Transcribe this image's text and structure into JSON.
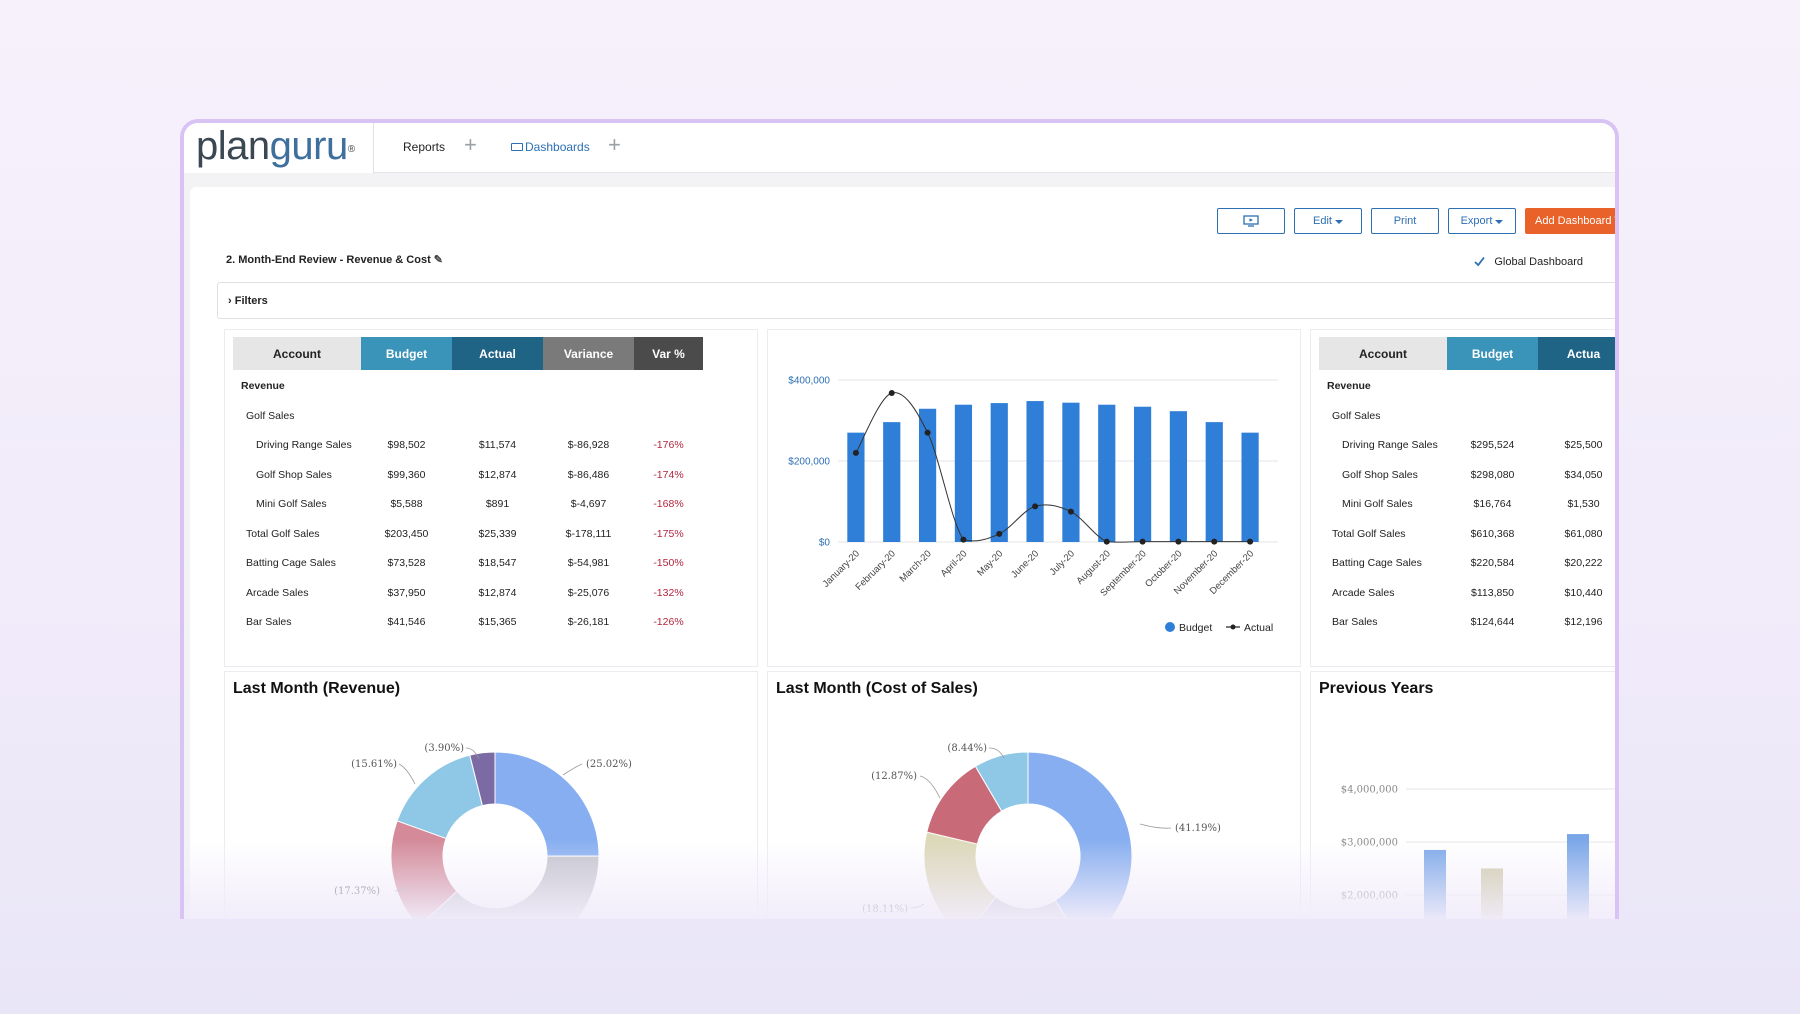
{
  "nav": {
    "logo_plan": "plan",
    "logo_guru": "guru",
    "logo_reg": "®",
    "reports": "Reports",
    "dashboards": "Dashboards",
    "plus": "+"
  },
  "toolbar": {
    "edit": "Edit",
    "print": "Print",
    "export": "Export",
    "add_dashboard": "Add Dashboard T"
  },
  "dashboard": {
    "title": "2. Month-End Review - Revenue & Cost",
    "global_label": "Global Dashboard",
    "filters": "Filters"
  },
  "table_left": {
    "headers": [
      "Account",
      "Budget",
      "Actual",
      "Variance",
      "Var %"
    ],
    "rows": [
      {
        "account": "Revenue",
        "budget": "",
        "actual": "",
        "variance": "",
        "var_pct": ""
      },
      {
        "account": "Golf Sales",
        "budget": "",
        "actual": "",
        "variance": "",
        "var_pct": ""
      },
      {
        "account": "Driving Range Sales",
        "budget": "$98,502",
        "actual": "$11,574",
        "variance": "$-86,928",
        "var_pct": "-176%"
      },
      {
        "account": "Golf Shop Sales",
        "budget": "$99,360",
        "actual": "$12,874",
        "variance": "$-86,486",
        "var_pct": "-174%"
      },
      {
        "account": "Mini Golf Sales",
        "budget": "$5,588",
        "actual": "$891",
        "variance": "$-4,697",
        "var_pct": "-168%"
      },
      {
        "account": "Total Golf Sales",
        "budget": "$203,450",
        "actual": "$25,339",
        "variance": "$-178,111",
        "var_pct": "-175%"
      },
      {
        "account": "Batting Cage Sales",
        "budget": "$73,528",
        "actual": "$18,547",
        "variance": "$-54,981",
        "var_pct": "-150%"
      },
      {
        "account": "Arcade Sales",
        "budget": "$37,950",
        "actual": "$12,874",
        "variance": "$-25,076",
        "var_pct": "-132%"
      },
      {
        "account": "Bar Sales",
        "budget": "$41,546",
        "actual": "$15,365",
        "variance": "$-26,181",
        "var_pct": "-126%"
      }
    ]
  },
  "table_right": {
    "headers": [
      "Account",
      "Budget",
      "Actua"
    ],
    "rows": [
      {
        "account": "Revenue",
        "budget": "",
        "actual": ""
      },
      {
        "account": "Golf Sales",
        "budget": "",
        "actual": ""
      },
      {
        "account": "Driving Range Sales",
        "budget": "$295,524",
        "actual": "$25,500"
      },
      {
        "account": "Golf Shop Sales",
        "budget": "$298,080",
        "actual": "$34,050"
      },
      {
        "account": "Mini Golf Sales",
        "budget": "$16,764",
        "actual": "$1,530"
      },
      {
        "account": "Total Golf Sales",
        "budget": "$610,368",
        "actual": "$61,080"
      },
      {
        "account": "Batting Cage Sales",
        "budget": "$220,584",
        "actual": "$20,222"
      },
      {
        "account": "Arcade Sales",
        "budget": "$113,850",
        "actual": "$10,440"
      },
      {
        "account": "Bar Sales",
        "budget": "$124,644",
        "actual": "$12,196"
      }
    ]
  },
  "panels": {
    "revenue_title": "Last Month (Revenue)",
    "cost_title": "Last Month (Cost of Sales)",
    "prev_years_title": "Previous Years"
  },
  "colors": {
    "budget": "#2f7fd8",
    "actual": "#222222",
    "header_gray": "#e6e6e6",
    "header_budget": "#3a93b8",
    "header_actual": "#1f6385",
    "header_variance": "#7a7a7a",
    "header_varpct": "#4b4b4b",
    "accent_orange": "#e8622a"
  },
  "chart_data": [
    {
      "type": "bar",
      "categories": [
        "January-20",
        "February-20",
        "March-20",
        "April-20",
        "May-20",
        "June-20",
        "July-20",
        "August-20",
        "September-20",
        "October-20",
        "November-20",
        "December-20"
      ],
      "series": [
        {
          "name": "Budget",
          "type": "bar",
          "values": [
            270000,
            296000,
            329000,
            339000,
            343000,
            348000,
            344000,
            339000,
            334000,
            323000,
            296000,
            270000
          ]
        },
        {
          "name": "Actual",
          "type": "line",
          "values": [
            220000,
            368000,
            270000,
            6000,
            20000,
            88000,
            75000,
            1000,
            1000,
            1000,
            1000,
            1000
          ]
        }
      ],
      "ylim": [
        0,
        400000
      ],
      "yticks": [
        "$0",
        "$200,000",
        "$400,000"
      ],
      "legend": "bottom-right",
      "grid": true
    },
    {
      "type": "pie",
      "title": "Last Month (Revenue)",
      "values": [
        25.02,
        17.37,
        15.61,
        3.9
      ],
      "labels": [
        "(25.02%)",
        "(17.37%)",
        "(15.61%)",
        "(3.90%)"
      ]
    },
    {
      "type": "pie",
      "title": "Last Month (Cost of Sales)",
      "values": [
        41.19,
        18.11,
        12.87,
        8.44
      ],
      "labels": [
        "(41.19%)",
        "(18.11%)",
        "(12.87%)",
        "(8.44%)"
      ]
    },
    {
      "type": "bar",
      "title": "Previous Years",
      "yticks": [
        "$4,000,000",
        "$3,000,000",
        "$2,000,000"
      ],
      "ylim": [
        2000000,
        4000000
      ],
      "values": [
        2850000,
        2500000,
        3150000
      ]
    }
  ]
}
